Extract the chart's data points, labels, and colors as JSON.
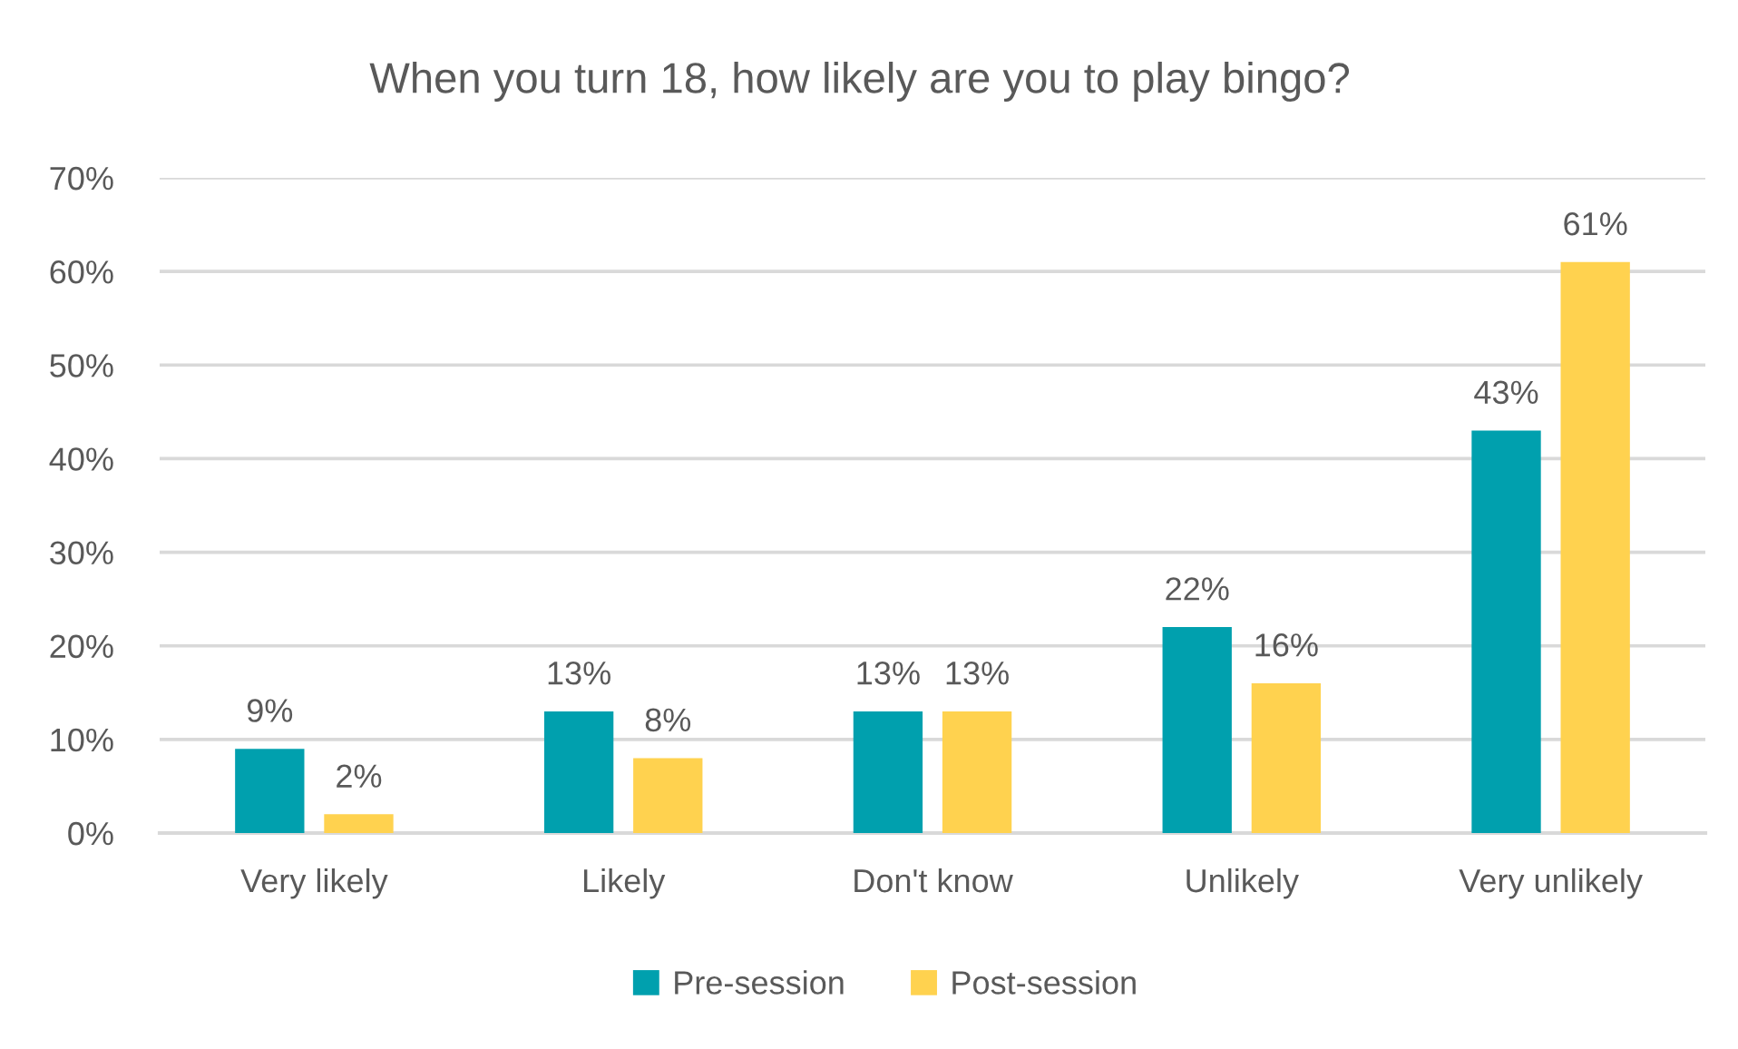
{
  "chart_data": {
    "type": "bar",
    "title": "When you turn 18, how likely are you to play bingo?",
    "categories": [
      "Very likely",
      "Likely",
      "Don't know",
      "Unlikely",
      "Very unlikely"
    ],
    "series": [
      {
        "name": "Pre-session",
        "color": "#00a0ae",
        "values": [
          9,
          13,
          13,
          22,
          43
        ],
        "value_labels": [
          "9%",
          "13%",
          "13%",
          "22%",
          "43%"
        ]
      },
      {
        "name": "Post-session",
        "color": "#ffd24f",
        "values": [
          2,
          8,
          13,
          16,
          61
        ],
        "value_labels": [
          "2%",
          "8%",
          "13%",
          "16%",
          "61%"
        ]
      }
    ],
    "ylim": [
      0,
      70
    ],
    "yticks": [
      {
        "value": 0,
        "label": "0%"
      },
      {
        "value": 10,
        "label": "10%"
      },
      {
        "value": 20,
        "label": "20%"
      },
      {
        "value": 30,
        "label": "30%"
      },
      {
        "value": 40,
        "label": "40%"
      },
      {
        "value": 50,
        "label": "50%"
      },
      {
        "value": 60,
        "label": "60%"
      },
      {
        "value": 70,
        "label": "70%"
      }
    ],
    "grid": "y",
    "legend": "bottom"
  }
}
